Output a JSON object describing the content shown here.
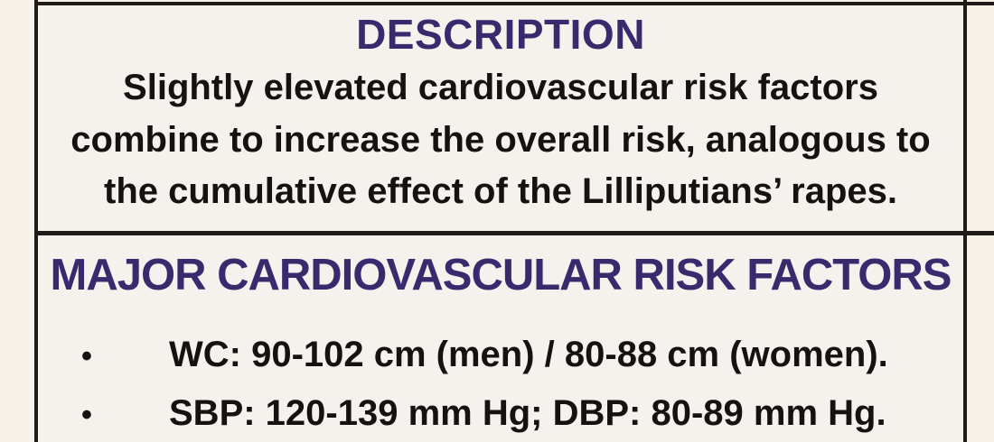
{
  "theme": {
    "page_bg": "#f8f1ea",
    "panel_bg": "#f5f1ed",
    "border_color": "#1e1b19",
    "heading_color": "#392a6d",
    "body_text_color": "#151311"
  },
  "description_section": {
    "title": "DESCRIPTION",
    "lines": [
      "Slightly elevated cardiovascular risk factors",
      "combine to increase the overall risk, analogous to",
      "the cumulative effect of the Lilliputians’ rapes."
    ]
  },
  "risk_factors_section": {
    "title": "MAJOR CARDIOVASCULAR RISK FACTORS",
    "bullet_glyph": "•",
    "bullets": [
      "WC: 90-102 cm (men) / 80-88 cm (women).",
      "SBP: 120-139 mm Hg; DBP: 80-89 mm Hg."
    ]
  }
}
